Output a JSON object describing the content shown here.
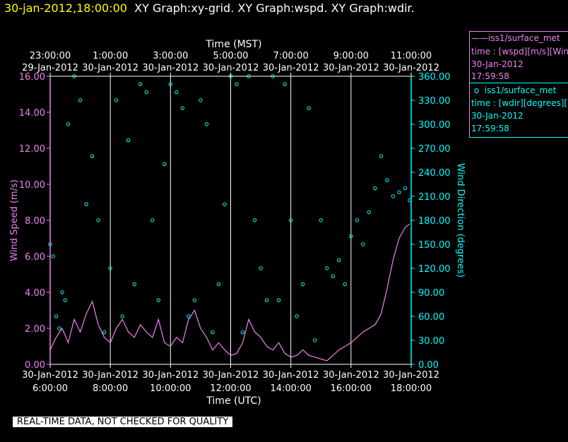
{
  "header": {
    "timestamp": "30-jan-2012,18:00:00",
    "title": "XY Graph:xy-grid.  XY Graph:wspd.  XY Graph:wdir."
  },
  "legend": {
    "wspd": {
      "line1": "iss1/surface_met",
      "line2": "time : [wspd][m/s][Wind",
      "line3": "30-Jan-2012",
      "line4": "17:59:58"
    },
    "wdir": {
      "line1": "iss1/surface_met",
      "line2": "time : [wdir][degrees][V",
      "line3": "30-Jan-2012",
      "line4": "17:59:58"
    }
  },
  "disclaimer": "REAL-TIME DATA, NOT CHECKED FOR QUALITY",
  "colors": {
    "background": "#000000",
    "wspd": "#ee82ee",
    "wdir": "#00ffff",
    "grid": "#ffffff",
    "timestamp": "#ffff00"
  },
  "chart_data": {
    "type": "line",
    "x_label_bottom": "Time (UTC)",
    "x_label_top": "Time (MST)",
    "y_label_left": "Wind Speed (m/s)",
    "y_label_right": "Wind Direction (degrees)",
    "x_range_utc_hours": [
      6,
      18
    ],
    "ylim_left": [
      0,
      16
    ],
    "ylim_right": [
      0,
      360
    ],
    "grid": true,
    "bottom_ticks": [
      {
        "hour": 6,
        "date": "30-Jan-2012",
        "time": "6:00:00"
      },
      {
        "hour": 8,
        "date": "30-Jan-2012",
        "time": "8:00:00"
      },
      {
        "hour": 10,
        "date": "30-Jan-2012",
        "time": "10:00:00"
      },
      {
        "hour": 12,
        "date": "30-Jan-2012",
        "time": "12:00:00"
      },
      {
        "hour": 14,
        "date": "30-Jan-2012",
        "time": "14:00:00"
      },
      {
        "hour": 16,
        "date": "30-Jan-2012",
        "time": "16:00:00"
      },
      {
        "hour": 18,
        "date": "30-Jan-2012",
        "time": "18:00:00"
      }
    ],
    "top_ticks": [
      {
        "hour": 6,
        "date": "29-Jan-2012",
        "time": "23:00:00"
      },
      {
        "hour": 8,
        "date": "30-Jan-2012",
        "time": "1:00:00"
      },
      {
        "hour": 10,
        "date": "30-Jan-2012",
        "time": "3:00:00"
      },
      {
        "hour": 12,
        "date": "30-Jan-2012",
        "time": "5:00:00"
      },
      {
        "hour": 14,
        "date": "30-Jan-2012",
        "time": "7:00:00"
      },
      {
        "hour": 16,
        "date": "30-Jan-2012",
        "time": "9:00:00"
      },
      {
        "hour": 18,
        "date": "30-Jan-2012",
        "time": "11:00:00"
      }
    ],
    "left_ticks": [
      "0.00",
      "2.00",
      "4.00",
      "6.00",
      "8.00",
      "10.00",
      "12.00",
      "14.00",
      "16.00"
    ],
    "right_ticks": [
      "0.00",
      "30.00",
      "60.00",
      "90.00",
      "120.00",
      "150.00",
      "180.00",
      "210.00",
      "240.00",
      "270.00",
      "300.00",
      "330.00",
      "360.00"
    ],
    "series": [
      {
        "name": "wspd",
        "style": "line",
        "x": [
          6.0,
          6.2,
          6.4,
          6.6,
          6.8,
          7.0,
          7.2,
          7.4,
          7.6,
          7.8,
          8.0,
          8.2,
          8.4,
          8.6,
          8.8,
          9.0,
          9.2,
          9.4,
          9.6,
          9.8,
          10.0,
          10.2,
          10.4,
          10.6,
          10.8,
          11.0,
          11.2,
          11.4,
          11.6,
          11.8,
          12.0,
          12.2,
          12.4,
          12.6,
          12.8,
          13.0,
          13.2,
          13.4,
          13.6,
          13.8,
          14.0,
          14.2,
          14.4,
          14.6,
          14.8,
          15.0,
          15.2,
          15.4,
          15.6,
          15.8,
          16.0,
          16.2,
          16.4,
          16.6,
          16.8,
          17.0,
          17.2,
          17.4,
          17.6,
          17.8,
          17.95
        ],
        "values": [
          0.8,
          1.5,
          2.0,
          1.2,
          2.5,
          1.8,
          2.8,
          3.5,
          2.2,
          1.5,
          1.2,
          2.0,
          2.5,
          1.8,
          1.5,
          2.2,
          1.8,
          1.5,
          2.5,
          1.2,
          1.0,
          1.5,
          1.2,
          2.5,
          3.0,
          2.0,
          1.5,
          0.8,
          1.2,
          0.8,
          0.5,
          0.6,
          1.2,
          2.5,
          1.8,
          1.5,
          1.0,
          0.8,
          1.2,
          0.6,
          0.4,
          0.5,
          0.8,
          0.5,
          0.4,
          0.3,
          0.2,
          0.5,
          0.8,
          1.0,
          1.2,
          1.5,
          1.8,
          2.0,
          2.2,
          2.8,
          4.2,
          5.8,
          7.0,
          7.6,
          7.8
        ]
      },
      {
        "name": "wdir",
        "style": "points",
        "x": [
          6.0,
          6.1,
          6.2,
          6.3,
          6.4,
          6.5,
          6.6,
          6.8,
          7.0,
          7.2,
          7.4,
          7.6,
          7.8,
          8.0,
          8.2,
          8.4,
          8.6,
          8.8,
          9.0,
          9.2,
          9.4,
          9.6,
          9.8,
          10.0,
          10.2,
          10.4,
          10.6,
          10.8,
          11.0,
          11.2,
          11.4,
          11.6,
          11.8,
          12.0,
          12.2,
          12.4,
          12.6,
          12.8,
          13.0,
          13.2,
          13.4,
          13.6,
          13.8,
          14.0,
          14.2,
          14.4,
          14.6,
          14.8,
          15.0,
          15.2,
          15.4,
          15.6,
          15.8,
          16.0,
          16.2,
          16.4,
          16.6,
          16.8,
          17.0,
          17.2,
          17.4,
          17.6,
          17.8,
          17.95
        ],
        "values": [
          150,
          135,
          60,
          45,
          90,
          80,
          300,
          360,
          330,
          200,
          260,
          180,
          40,
          120,
          330,
          60,
          280,
          100,
          350,
          340,
          180,
          80,
          250,
          350,
          340,
          320,
          60,
          80,
          330,
          300,
          40,
          100,
          200,
          360,
          350,
          40,
          360,
          180,
          120,
          80,
          360,
          80,
          350,
          180,
          60,
          100,
          320,
          30,
          180,
          120,
          110,
          130,
          100,
          160,
          180,
          150,
          190,
          220,
          260,
          230,
          210,
          215,
          220,
          205
        ]
      }
    ]
  }
}
